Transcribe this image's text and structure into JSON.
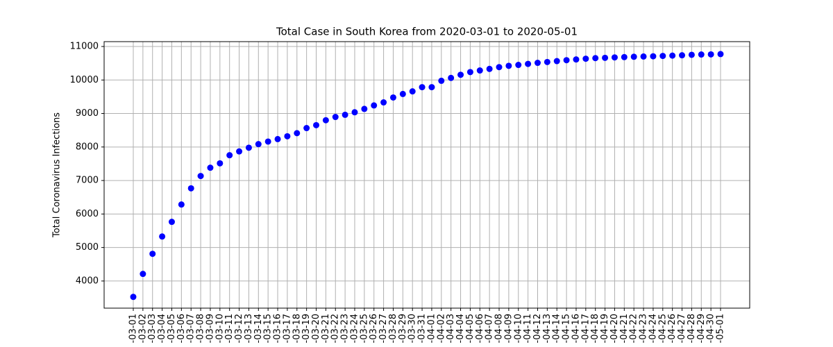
{
  "chart_data": {
    "type": "scatter",
    "title": "Total Case in South Korea from 2020-03-01 to 2020-05-01",
    "y_label": "Total Coronavirus Infections",
    "color": "#0000ff",
    "grid": true,
    "ylim": [
      3190,
      11145
    ],
    "yticks": [
      4000,
      5000,
      6000,
      7000,
      8000,
      9000,
      10000,
      11000
    ],
    "categories": [
      "-03-01",
      "-03-02",
      "-03-03",
      "-03-04",
      "-03-05",
      "-03-06",
      "-03-07",
      "-03-08",
      "-03-09",
      "-03-10",
      "-03-11",
      "-03-12",
      "-03-13",
      "-03-14",
      "-03-15",
      "-03-16",
      "-03-17",
      "-03-18",
      "-03-19",
      "-03-20",
      "-03-21",
      "-03-22",
      "-03-23",
      "-03-24",
      "-03-25",
      "-03-26",
      "-03-27",
      "-03-28",
      "-03-29",
      "-03-30",
      "-03-31",
      "-04-01",
      "-04-02",
      "-04-03",
      "-04-04",
      "-04-05",
      "-04-06",
      "-04-07",
      "-04-08",
      "-04-09",
      "-04-10",
      "-04-11",
      "-04-12",
      "-04-13",
      "-04-14",
      "-04-15",
      "-04-16",
      "-04-17",
      "-04-18",
      "-04-19",
      "-04-20",
      "-04-21",
      "-04-22",
      "-04-23",
      "-04-24",
      "-04-25",
      "-04-26",
      "-04-27",
      "-04-28",
      "-04-29",
      "-04-30",
      "-05-01"
    ],
    "values": [
      3526,
      4212,
      4812,
      5328,
      5766,
      6284,
      6767,
      7134,
      7382,
      7513,
      7755,
      7869,
      7979,
      8086,
      8162,
      8236,
      8320,
      8413,
      8565,
      8652,
      8799,
      8897,
      8961,
      9037,
      9137,
      9241,
      9332,
      9478,
      9583,
      9661,
      9786,
      9786,
      9976,
      10062,
      10156,
      10237,
      10284,
      10331,
      10384,
      10423,
      10450,
      10480,
      10512,
      10537,
      10564,
      10591,
      10613,
      10635,
      10653,
      10661,
      10674,
      10683,
      10694,
      10702,
      10708,
      10718,
      10728,
      10738,
      10752,
      10761,
      10765,
      10774
    ]
  }
}
